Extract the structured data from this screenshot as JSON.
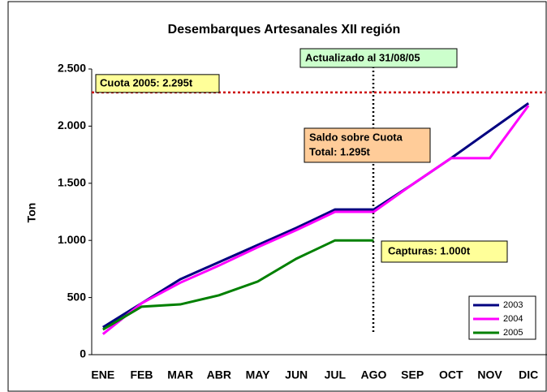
{
  "chart_data": {
    "type": "line",
    "title": "Desembarques Artesanales XII región",
    "y_label": "Ton",
    "categories": [
      "ENE",
      "FEB",
      "MAR",
      "ABR",
      "MAY",
      "JUN",
      "JUL",
      "AGO",
      "SEP",
      "OCT",
      "NOV",
      "DIC"
    ],
    "series": [
      {
        "name": "2003",
        "color": "#000080",
        "values": [
          240,
          450,
          660,
          810,
          960,
          1110,
          1270,
          1270,
          1490,
          1720,
          1960,
          2200
        ]
      },
      {
        "name": "2004",
        "color": "#ff00ff",
        "values": [
          180,
          450,
          630,
          780,
          940,
          1090,
          1250,
          1250,
          1490,
          1720,
          1720,
          2180
        ]
      },
      {
        "name": "2005",
        "color": "#008000",
        "values": [
          220,
          420,
          440,
          520,
          640,
          840,
          1000,
          1000,
          null,
          null,
          null,
          null
        ]
      }
    ],
    "ylim": [
      0,
      2500
    ],
    "yticks": [
      0,
      500,
      {
        "value": 1000,
        "label": "1.000"
      },
      {
        "value": 1500,
        "label": "1.500"
      },
      {
        "value": 2000,
        "label": "2.000"
      },
      {
        "value": 2500,
        "label": "2.500"
      }
    ],
    "reference_line": {
      "value": 2295,
      "label": "Cuota 2005: 2.295t",
      "color": "#cc0000"
    },
    "annotations": {
      "updated": "Actualizado al 31/08/05",
      "balance": [
        "Saldo sobre Cuota",
        "Total: 1.295t"
      ],
      "catch": "Capturas: 1.000t"
    }
  }
}
